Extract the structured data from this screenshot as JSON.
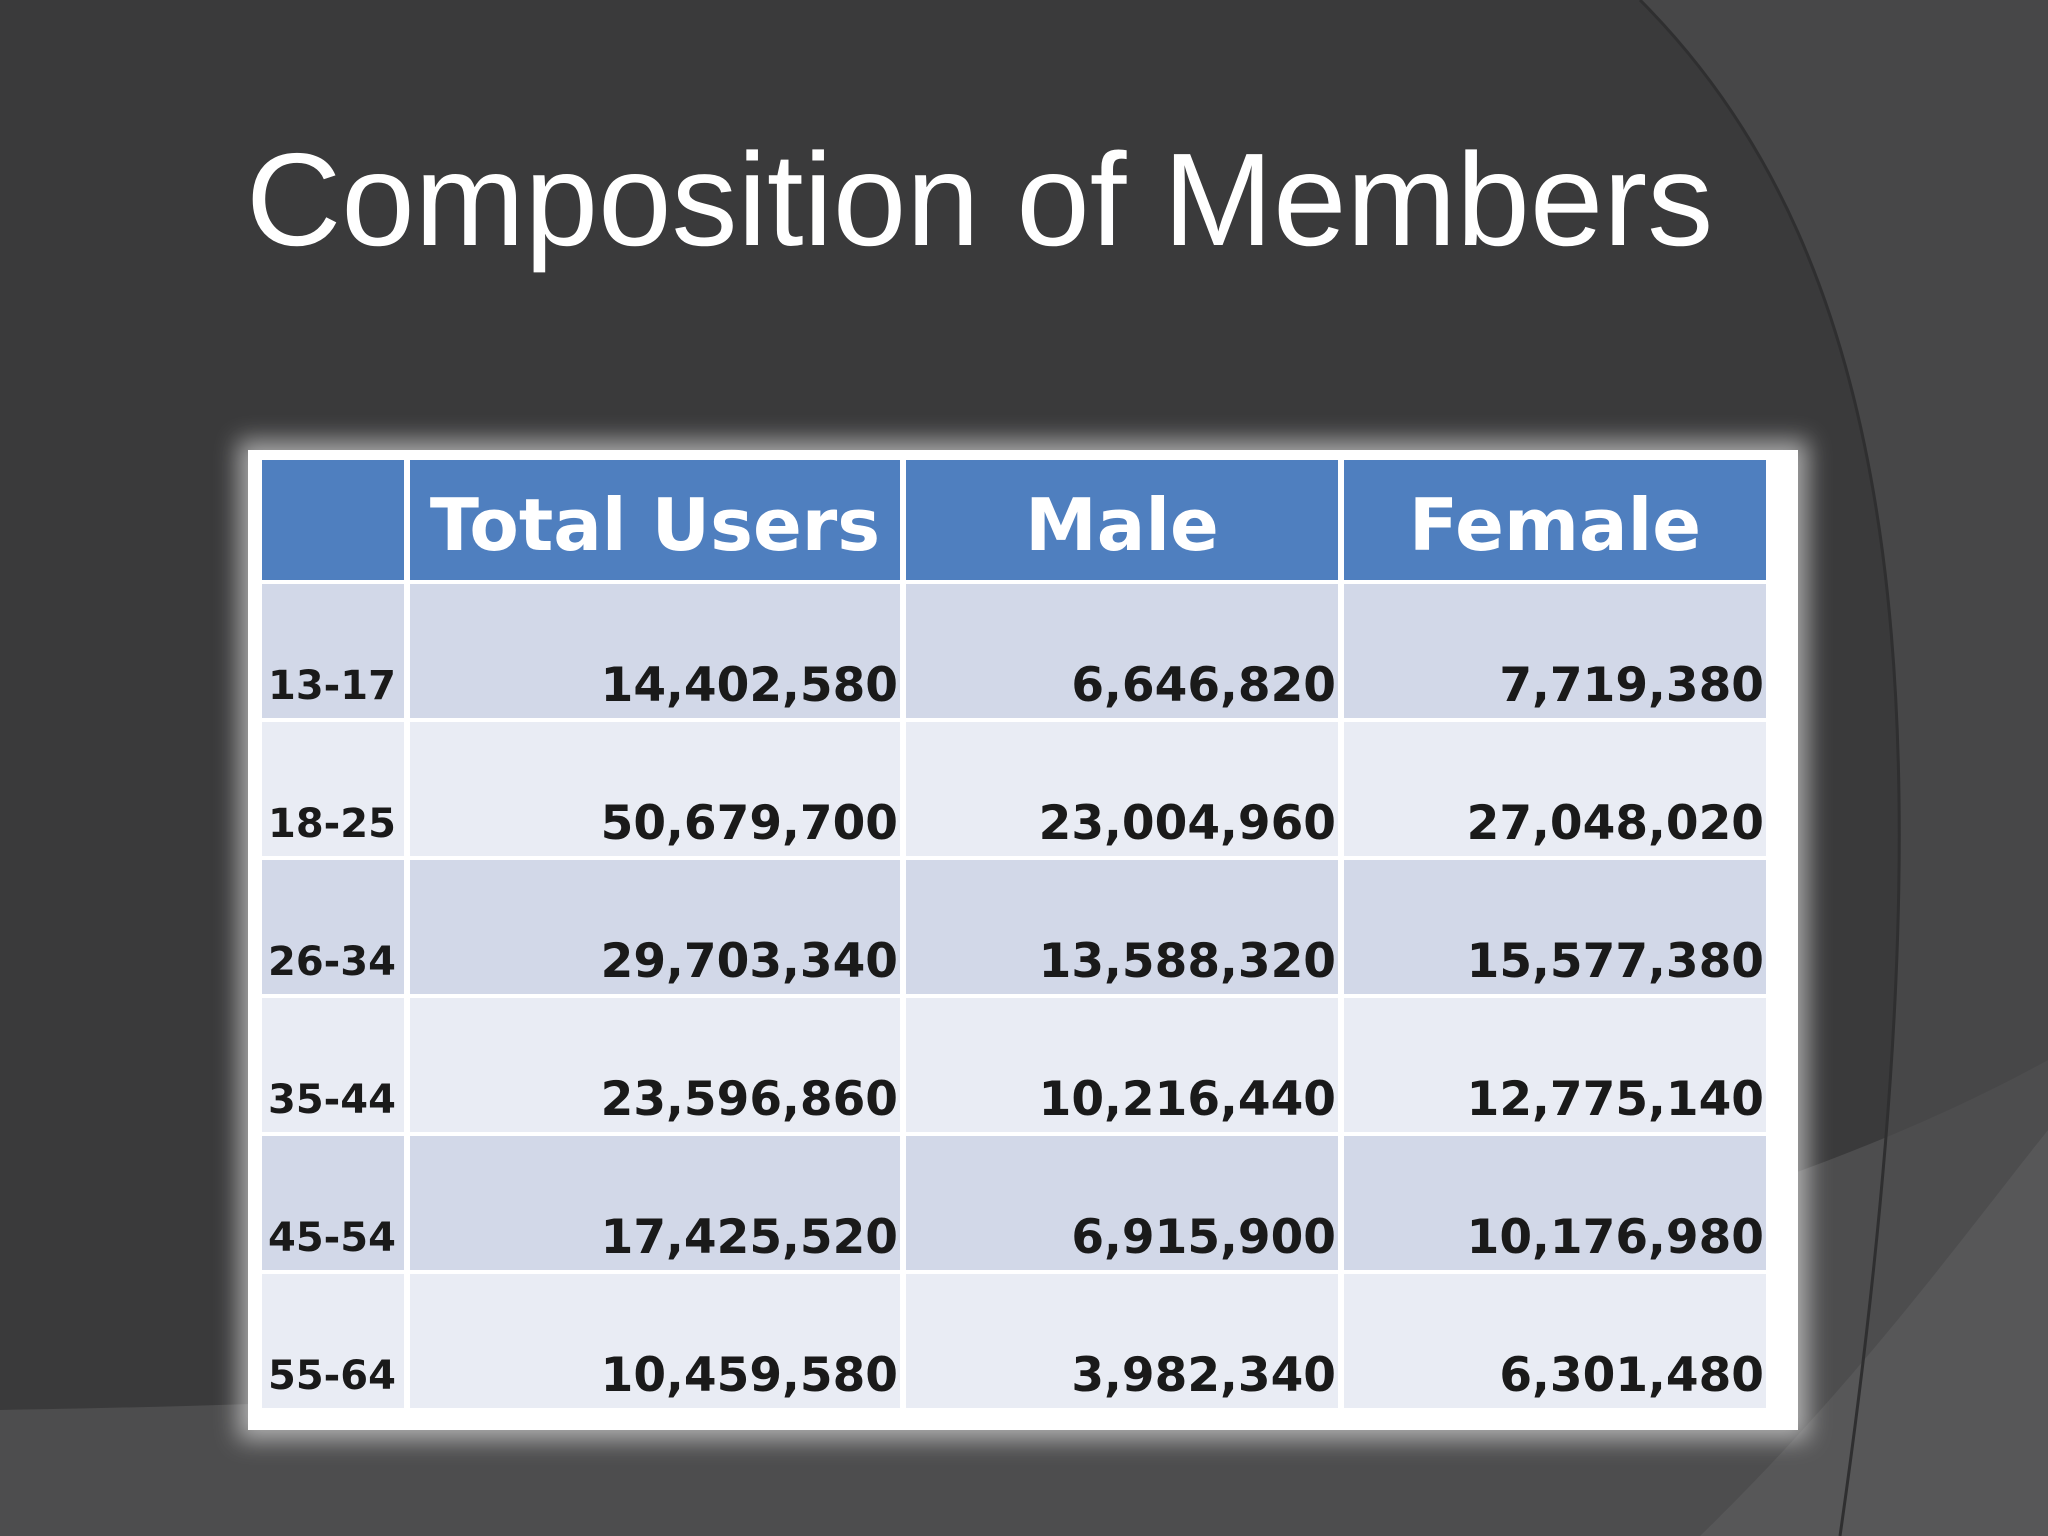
{
  "slide": {
    "title": "Composition of Members",
    "colors": {
      "background": "#3a3a3b",
      "header": "#4f7fbf",
      "row_band_dark": "#d2d8e8",
      "row_band_light": "#e9ecf4"
    }
  },
  "table": {
    "headers": [
      "",
      "Total Users",
      "Male",
      "Female"
    ],
    "rows": [
      {
        "age": "13-17",
        "total": "14,402,580",
        "male": "6,646,820",
        "female": "7,719,380"
      },
      {
        "age": "18-25",
        "total": "50,679,700",
        "male": "23,004,960",
        "female": "27,048,020"
      },
      {
        "age": "26-34",
        "total": "29,703,340",
        "male": "13,588,320",
        "female": "15,577,380"
      },
      {
        "age": "35-44",
        "total": "23,596,860",
        "male": "10,216,440",
        "female": "12,775,140"
      },
      {
        "age": "45-54",
        "total": "17,425,520",
        "male": "6,915,900",
        "female": "10,176,980"
      },
      {
        "age": "55-64",
        "total": "10,459,580",
        "male": "3,982,340",
        "female": "6,301,480"
      }
    ]
  }
}
